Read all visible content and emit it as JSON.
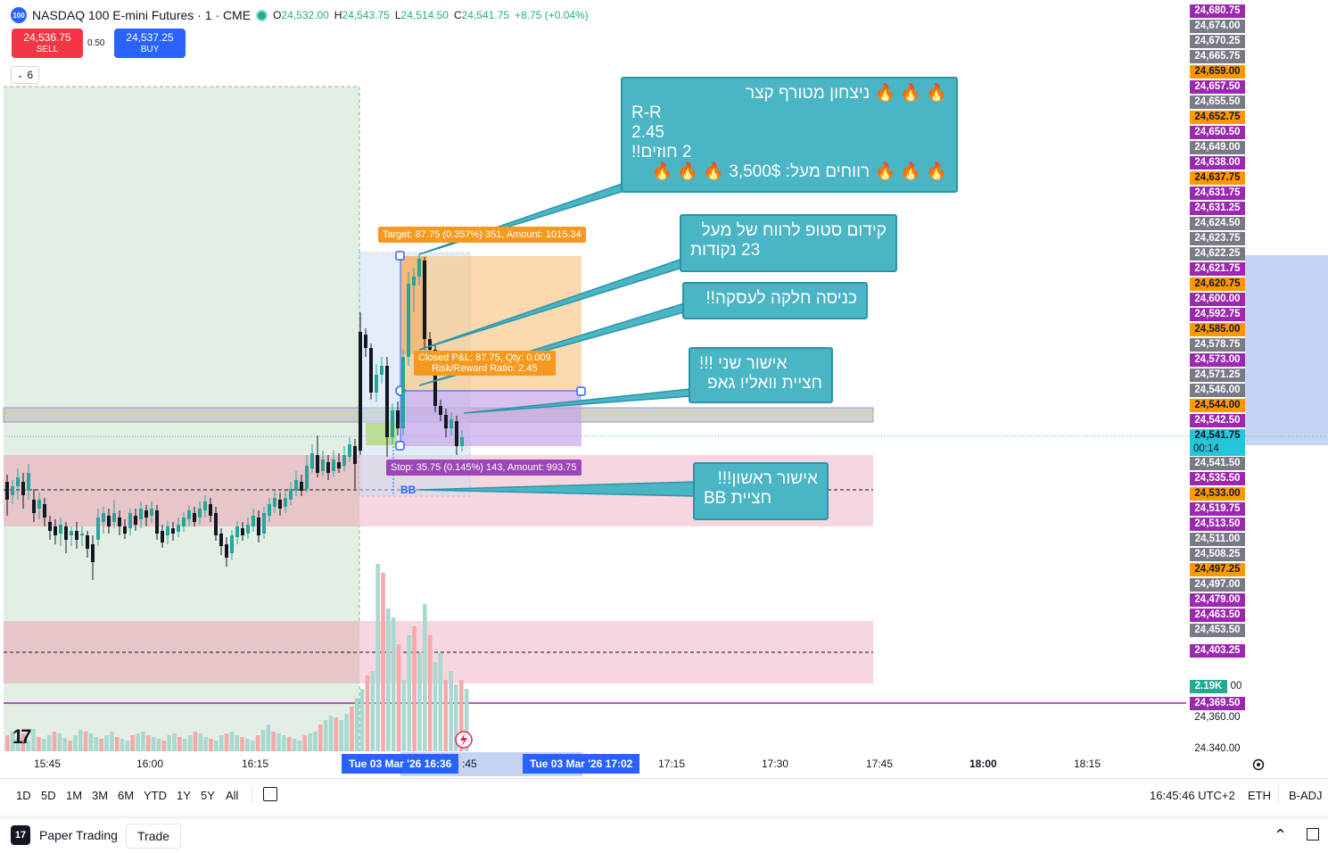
{
  "header": {
    "symbol_badge": "100",
    "title": "NASDAQ 100 E-mini Futures · 1 · CME",
    "ohlc": {
      "o_label": "O",
      "o_value": "24,532.00",
      "h_label": "H",
      "h_value": "24,543.75",
      "l_label": "L",
      "l_value": "24,514.50",
      "c_label": "C",
      "c_value": "24,541.75",
      "change": "+8.75 (+0.04%)"
    }
  },
  "trade_buttons": {
    "sell_price": "24,536.75",
    "sell_label": "SELL",
    "spread": "0.50",
    "buy_price": "24,537.25",
    "buy_label": "BUY"
  },
  "indicators_collapse": {
    "count": "6"
  },
  "price_axis": [
    {
      "label": "24,680.75",
      "bg": "#9c27b0",
      "fg": "#ffffff"
    },
    {
      "label": "24,674.00",
      "bg": "#787b86",
      "fg": "#ffffff"
    },
    {
      "label": "24,670.25",
      "bg": "#787b86",
      "fg": "#ffffff"
    },
    {
      "label": "24,665.75",
      "bg": "#787b86",
      "fg": "#ffffff"
    },
    {
      "label": "24,659.00",
      "bg": "#ff9800",
      "fg": "#131722"
    },
    {
      "label": "24,657.50",
      "bg": "#9c27b0",
      "fg": "#ffffff"
    },
    {
      "label": "24,655.50",
      "bg": "#787b86",
      "fg": "#ffffff"
    },
    {
      "label": "24,652.75",
      "bg": "#ff9800",
      "fg": "#131722"
    },
    {
      "label": "24,650.50",
      "bg": "#9c27b0",
      "fg": "#ffffff"
    },
    {
      "label": "24,649.00",
      "bg": "#787b86",
      "fg": "#ffffff"
    },
    {
      "label": "24,638.00",
      "bg": "#9c27b0",
      "fg": "#ffffff"
    },
    {
      "label": "24,637.75",
      "bg": "#ff9800",
      "fg": "#131722"
    },
    {
      "label": "24,631.75",
      "bg": "#9c27b0",
      "fg": "#ffffff"
    },
    {
      "label": "24,631.25",
      "bg": "#9c27b0",
      "fg": "#ffffff"
    },
    {
      "label": "24,624.50",
      "bg": "#787b86",
      "fg": "#ffffff"
    },
    {
      "label": "24,623.75",
      "bg": "#787b86",
      "fg": "#ffffff"
    },
    {
      "label": "24,622.25",
      "bg": "#787b86",
      "fg": "#ffffff"
    },
    {
      "label": "24,621.75",
      "bg": "#9c27b0",
      "fg": "#ffffff"
    },
    {
      "label": "24,620.75",
      "bg": "#ff9800",
      "fg": "#131722"
    },
    {
      "label": "24,600.00",
      "bg": "#9c27b0",
      "fg": "#ffffff"
    },
    {
      "label": "24,592.75",
      "bg": "#9c27b0",
      "fg": "#ffffff"
    },
    {
      "label": "24,585.00",
      "bg": "#ff9800",
      "fg": "#131722"
    },
    {
      "label": "24,578.75",
      "bg": "#787b86",
      "fg": "#ffffff"
    },
    {
      "label": "24,573.00",
      "bg": "#9c27b0",
      "fg": "#ffffff"
    },
    {
      "label": "24,571.25",
      "bg": "#787b86",
      "fg": "#ffffff"
    },
    {
      "label": "24,546.00",
      "bg": "#787b86",
      "fg": "#ffffff"
    },
    {
      "label": "24,544.00",
      "bg": "#ff9800",
      "fg": "#131722"
    },
    {
      "label": "24,542.50",
      "bg": "#9c27b0",
      "fg": "#ffffff"
    },
    {
      "label": "24,541.75",
      "bg": "#26c6da",
      "fg": "#131722",
      "sub": "00:14"
    },
    {
      "label": "24,541.50",
      "bg": "#787b86",
      "fg": "#ffffff"
    },
    {
      "label": "24,535.50",
      "bg": "#9c27b0",
      "fg": "#ffffff"
    },
    {
      "label": "24,533.00",
      "bg": "#ff9800",
      "fg": "#131722"
    },
    {
      "label": "24,519.75",
      "bg": "#9c27b0",
      "fg": "#ffffff"
    },
    {
      "label": "24,513.50",
      "bg": "#9c27b0",
      "fg": "#ffffff"
    },
    {
      "label": "24,511.00",
      "bg": "#787b86",
      "fg": "#ffffff"
    },
    {
      "label": "24,508.25",
      "bg": "#787b86",
      "fg": "#ffffff"
    },
    {
      "label": "24,497.25",
      "bg": "#ff9800",
      "fg": "#131722"
    },
    {
      "label": "24,497.00",
      "bg": "#787b86",
      "fg": "#ffffff"
    },
    {
      "label": "24,479.00",
      "bg": "#9c27b0",
      "fg": "#ffffff"
    },
    {
      "label": "24,463.50",
      "bg": "#9c27b0",
      "fg": "#ffffff"
    },
    {
      "label": "24,453.50",
      "bg": "#787b86",
      "fg": "#ffffff"
    },
    {
      "label": "24,403.25",
      "bg": "#9c27b0",
      "fg": "#ffffff"
    }
  ],
  "volume_badge": "2.19K",
  "volume_badge_suffix": "00",
  "purple_line_price": "24,369.50",
  "axis_plain": [
    "24,360.00",
    "24.340.00"
  ],
  "time_axis": [
    "15:45",
    "16:00",
    "16:15",
    "17:15",
    "17:30",
    "17:45",
    "18:00",
    "18:15"
  ],
  "time_axis_partial": ":45",
  "crosshair_times": [
    "Tue 03 Mar '26   16:36",
    "Tue 03 Mar '26   17:02"
  ],
  "position_tool": {
    "target": "Target: 87.75 (0.357%) 351, Amount: 1015.34",
    "closed_pnl": "Closed P&L: 87.75, Qty: 0.009",
    "rr_ratio": "Risk/Reward Ratio: 2.45",
    "stop": "Stop: 35.75 (0.145%) 143, Amount: 993.75",
    "bb_label": "BB"
  },
  "callouts": [
    {
      "lines": [
        "🔥 🔥 🔥 ניצחון מטורף קצר",
        "R-R",
        "2.45",
        "2 חוזים!!",
        "🔥 🔥 🔥 רווחים מעל: 3,500$ 🔥 🔥 🔥"
      ]
    },
    {
      "lines": [
        "קידום סטופ לרווח של מעל",
        "23 נקודות"
      ]
    },
    {
      "lines": [
        "כניסה חלקה לעסקה!!"
      ]
    },
    {
      "lines": [
        "אישור שני !!!",
        "חציית וואליו גאפ"
      ]
    },
    {
      "lines": [
        "אישור ראשון!!!",
        "חציית BB"
      ]
    }
  ],
  "bottom_toolbar": {
    "ranges": [
      "1D",
      "5D",
      "1M",
      "3M",
      "6M",
      "YTD",
      "1Y",
      "5Y",
      "All"
    ],
    "clock": "16:45:46 UTC+2",
    "session": "ETH",
    "adjust": "B-ADJ"
  },
  "footer": {
    "paper_trading": "Paper Trading",
    "trade_button": "Trade"
  },
  "colors": {
    "up": "#26a69a",
    "down": "#ef5350",
    "accent": "#2962ff",
    "callout": "#4ab5c4"
  }
}
